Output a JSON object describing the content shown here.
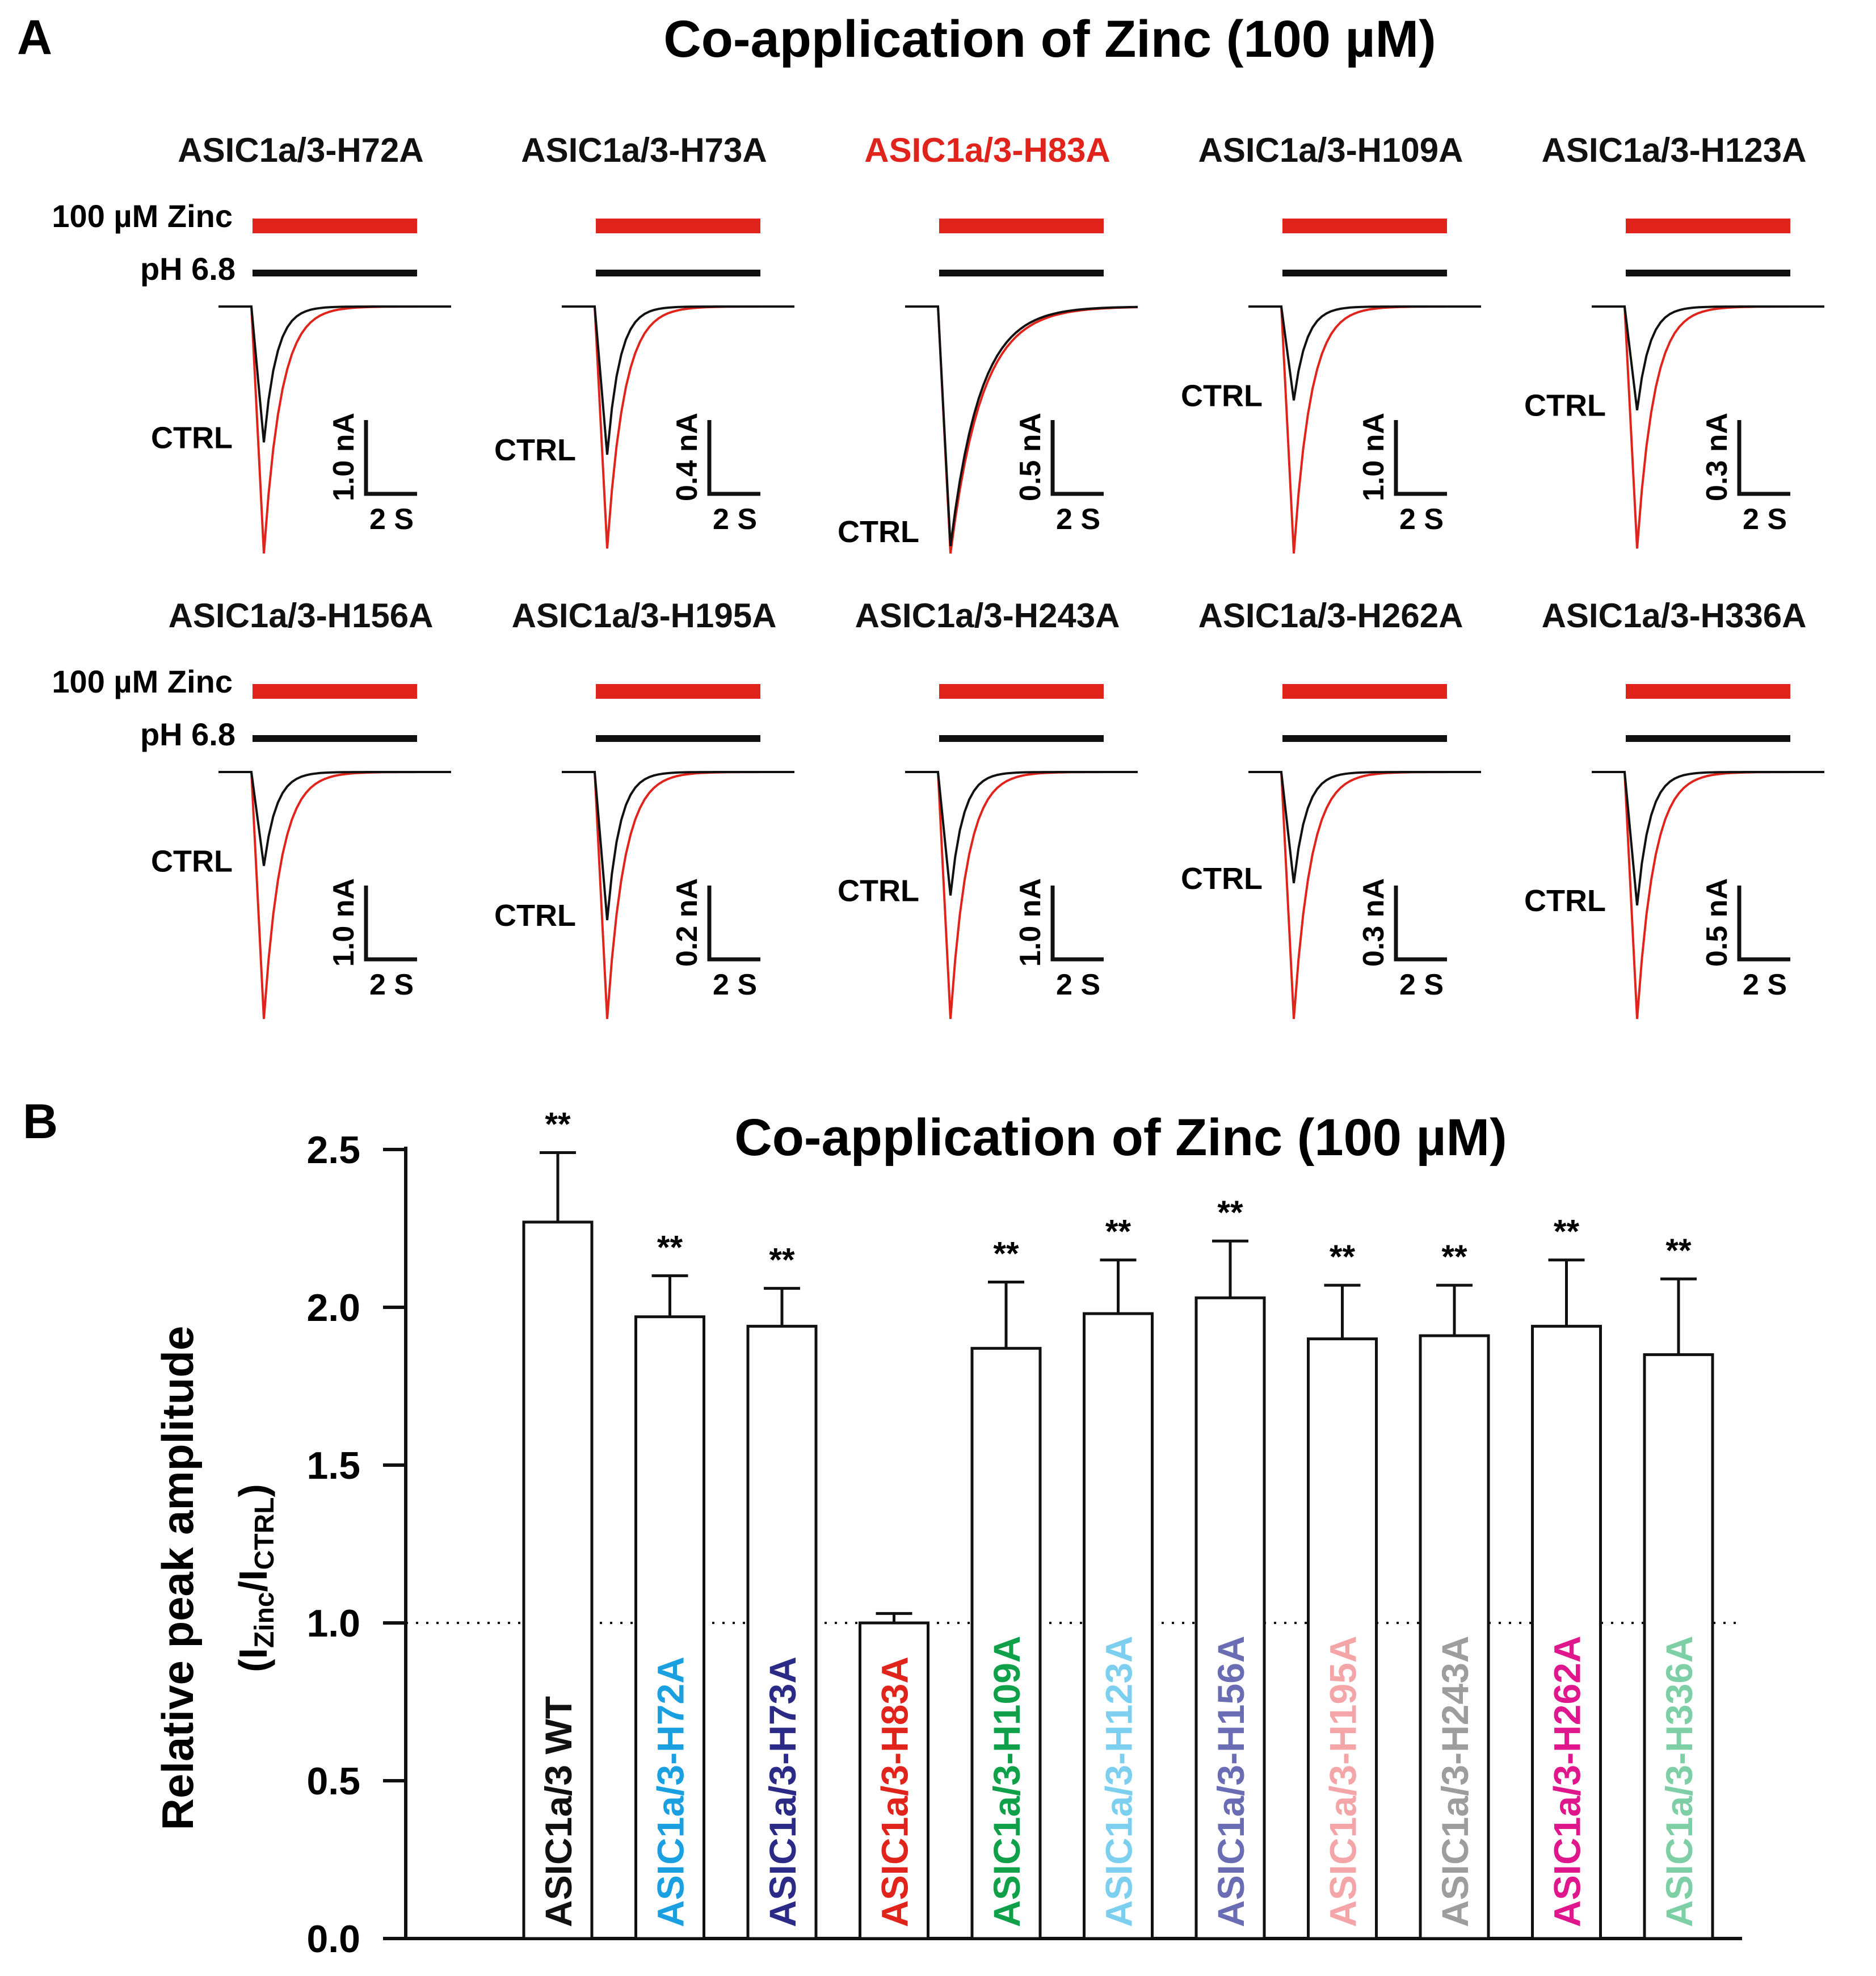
{
  "colors": {
    "zinc_bar": "#e0241b",
    "ctrl_trace": "#111111",
    "zinc_trace": "#e0241b",
    "axis": "#111111"
  },
  "panel_a": {
    "letter": "A",
    "title": "Co-application of Zinc (100 µM)",
    "zinc_label": "100 µM Zinc",
    "ph_label": "pH 6.8",
    "ctrl_label": "CTRL",
    "time_scale": "2 S",
    "traces": [
      {
        "name": "ASIC1a/3-H72A",
        "color": "#111111",
        "scale": "1.0 nA",
        "ctrl_peak": 0.55,
        "zinc_peak": 1.0
      },
      {
        "name": "ASIC1a/3-H73A",
        "color": "#111111",
        "scale": "0.4 nA",
        "ctrl_peak": 0.6,
        "zinc_peak": 0.98
      },
      {
        "name": "ASIC1a/3-H83A",
        "color": "#e0241b",
        "scale": "0.5 nA",
        "ctrl_peak": 0.97,
        "zinc_peak": 1.0
      },
      {
        "name": "ASIC1a/3-H109A",
        "color": "#111111",
        "scale": "1.0 nA",
        "ctrl_peak": 0.38,
        "zinc_peak": 1.0
      },
      {
        "name": "ASIC1a/3-H123A",
        "color": "#111111",
        "scale": "0.3 nA",
        "ctrl_peak": 0.42,
        "zinc_peak": 0.98
      },
      {
        "name": "ASIC1a/3-H156A",
        "color": "#111111",
        "scale": "1.0 nA",
        "ctrl_peak": 0.38,
        "zinc_peak": 1.0
      },
      {
        "name": "ASIC1a/3-H195A",
        "color": "#111111",
        "scale": "0.2 nA",
        "ctrl_peak": 0.6,
        "zinc_peak": 1.0
      },
      {
        "name": "ASIC1a/3-H243A",
        "color": "#111111",
        "scale": "1.0 nA",
        "ctrl_peak": 0.5,
        "zinc_peak": 1.0
      },
      {
        "name": "ASIC1a/3-H262A",
        "color": "#111111",
        "scale": "0.3 nA",
        "ctrl_peak": 0.45,
        "zinc_peak": 1.0
      },
      {
        "name": "ASIC1a/3-H336A",
        "color": "#111111",
        "scale": "0.5 nA",
        "ctrl_peak": 0.54,
        "zinc_peak": 1.0
      }
    ]
  },
  "chart_data": {
    "type": "bar",
    "panel_letter": "B",
    "title": "Co-application of Zinc (100 µM)",
    "ylabel": "Relative  peak  amplitude",
    "ylabel_sub": "(I",
    "ylabel_sub_zinc": "Zinc",
    "ylabel_mid": "/I",
    "ylabel_sub_ctrl": "CTRL",
    "ylabel_close": ")",
    "ylim": [
      0,
      2.5
    ],
    "yticks": [
      "0.0",
      "0.5",
      "1.0",
      "1.5",
      "2.0",
      "2.5"
    ],
    "yticks_values": [
      0,
      0.5,
      1.0,
      1.5,
      2.0,
      2.5
    ],
    "reference_line": 1.0,
    "categories": [
      "ASIC1a/3 WT",
      "ASIC1a/3-H72A",
      "ASIC1a/3-H73A",
      "ASIC1a/3-H83A",
      "ASIC1a/3-H109A",
      "ASIC1a/3-H123A",
      "ASIC1a/3-H156A",
      "ASIC1a/3-H195A",
      "ASIC1a/3-H243A",
      "ASIC1a/3-H262A",
      "ASIC1a/3-H336A"
    ],
    "label_colors": [
      "#111111",
      "#1aa0e0",
      "#2b2a86",
      "#e0241b",
      "#10a04a",
      "#7dcff0",
      "#6a6db3",
      "#f3a5a8",
      "#9d9d9d",
      "#e0168c",
      "#7fcfa6"
    ],
    "values": [
      2.27,
      1.97,
      1.94,
      1.0,
      1.87,
      1.98,
      2.03,
      1.9,
      1.91,
      1.94,
      1.85
    ],
    "errors": [
      0.22,
      0.13,
      0.12,
      0.03,
      0.21,
      0.17,
      0.18,
      0.17,
      0.16,
      0.21,
      0.24
    ],
    "significance": [
      "**",
      "**",
      "**",
      "",
      "**",
      "**",
      "**",
      "**",
      "**",
      "**",
      "**"
    ]
  }
}
